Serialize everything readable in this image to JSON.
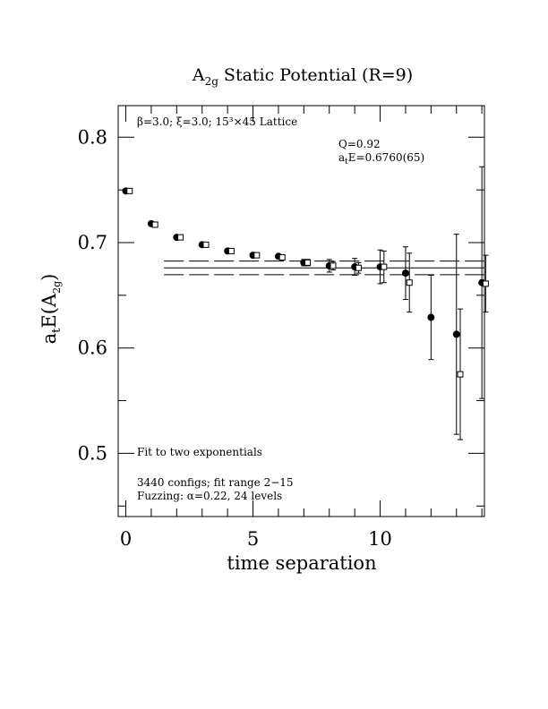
{
  "chart_data": {
    "type": "scatter",
    "title": {
      "base": "A",
      "sub": "2g",
      "rest": " Static Potential (R=9)"
    },
    "xlabel": "time separation",
    "ylabel": {
      "pre": "a",
      "sub1": "t",
      "mid": "E(A",
      "sub2": "2g",
      "post": ")"
    },
    "xlim": [
      -0.3,
      14.1
    ],
    "ylim": [
      0.44,
      0.83
    ],
    "x_ticks": [
      0,
      5,
      10
    ],
    "x_tick_labels": [
      "0",
      "5",
      "10"
    ],
    "y_ticks": [
      0.5,
      0.6,
      0.7,
      0.8
    ],
    "y_tick_labels": [
      "0.5",
      "0.6",
      "0.7",
      "0.8"
    ],
    "annotations": {
      "lattice": "β=3.0; ξ=3.0; 15³×45 Lattice",
      "q": "Q=0.92",
      "energy": {
        "pre": "a",
        "sub": "t",
        "post": "E=0.6760(65)"
      },
      "fit_type": "Fit to two exponentials",
      "configs": "3440 configs; fit range 2−15",
      "fuzzing": "Fuzzing: α=0.22, 24 levels"
    },
    "fit": {
      "value": 0.676,
      "error": 0.0065,
      "x_range": [
        1.5,
        14.1
      ]
    },
    "series": [
      {
        "marker": "filled-circle",
        "x": [
          0,
          1,
          2,
          3,
          4,
          5,
          6,
          7,
          8,
          9,
          10,
          11,
          12,
          13,
          14
        ],
        "y": [
          0.749,
          0.718,
          0.705,
          0.698,
          0.692,
          0.688,
          0.687,
          0.681,
          0.678,
          0.677,
          0.677,
          0.671,
          0.629,
          0.613,
          0.662
        ],
        "err": [
          0.001,
          0.001,
          0.001,
          0.0015,
          0.002,
          0.002,
          0.002,
          0.003,
          0.006,
          0.008,
          0.016,
          0.025,
          0.04,
          0.095,
          0.11
        ]
      },
      {
        "marker": "open-square",
        "x": [
          0.15,
          1.15,
          2.15,
          3.15,
          4.15,
          5.15,
          6.15,
          7.15,
          8.15,
          9.15,
          10.15,
          11.15,
          13.15,
          14.15
        ],
        "y": [
          0.749,
          0.717,
          0.705,
          0.698,
          0.692,
          0.688,
          0.686,
          0.681,
          0.678,
          0.676,
          0.677,
          0.662,
          0.575,
          0.661
        ],
        "err": [
          0.001,
          0.001,
          0.001,
          0.0015,
          0.002,
          0.002,
          0.002,
          0.003,
          0.004,
          0.005,
          0.015,
          0.028,
          0.062,
          0.027
        ]
      }
    ]
  }
}
